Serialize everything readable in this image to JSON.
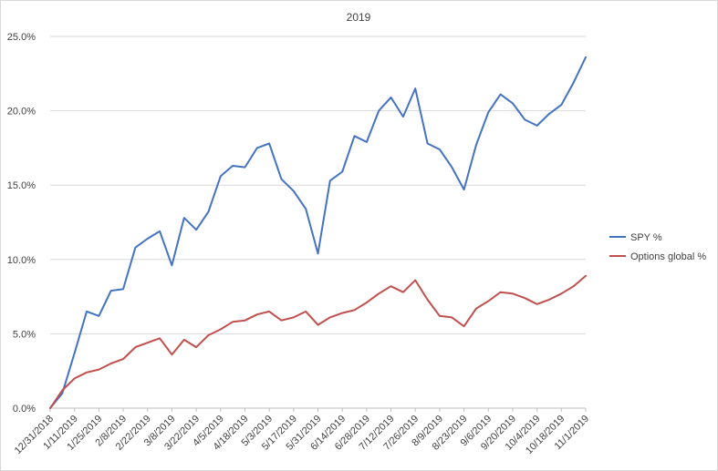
{
  "chart_data": {
    "type": "line",
    "title": "2019",
    "xlabel": "",
    "ylabel": "",
    "ylim": [
      0,
      0.25
    ],
    "y_ticks": [
      0,
      0.05,
      0.1,
      0.15,
      0.2,
      0.25
    ],
    "y_tick_labels": [
      "0.0%",
      "5.0%",
      "10.0%",
      "15.0%",
      "20.0%",
      "25.0%"
    ],
    "grid": "horizontal",
    "legend_position": "right",
    "x_tick_labels": [
      "12/31/2018",
      "1/11/2019",
      "1/25/2019",
      "2/8/2019",
      "2/22/2019",
      "3/8/2019",
      "3/22/2019",
      "4/5/2019",
      "4/18/2019",
      "5/3/2019",
      "5/17/2019",
      "5/31/2019",
      "6/14/2019",
      "6/28/2019",
      "7/12/2019",
      "7/26/2019",
      "8/9/2019",
      "8/23/2019",
      "9/6/2019",
      "9/20/2019",
      "10/4/2019",
      "10/18/2019",
      "11/1/2019"
    ],
    "series": [
      {
        "name": "SPY %",
        "color": "#4472C4",
        "values": [
          0.0,
          0.01,
          0.037,
          0.065,
          0.062,
          0.079,
          0.08,
          0.108,
          0.114,
          0.119,
          0.096,
          0.128,
          0.12,
          0.132,
          0.156,
          0.163,
          0.162,
          0.175,
          0.178,
          0.154,
          0.146,
          0.134,
          0.104,
          0.153,
          0.159,
          0.183,
          0.179,
          0.2,
          0.209,
          0.196,
          0.215,
          0.178,
          0.174,
          0.162,
          0.147,
          0.177,
          0.199,
          0.211,
          0.205,
          0.194,
          0.19,
          0.198,
          0.204,
          0.219,
          0.236
        ]
      },
      {
        "name": "Options global %",
        "color": "#C0504D",
        "values": [
          0.0,
          0.012,
          0.02,
          0.024,
          0.026,
          0.03,
          0.033,
          0.041,
          0.044,
          0.047,
          0.036,
          0.046,
          0.041,
          0.049,
          0.053,
          0.058,
          0.059,
          0.063,
          0.065,
          0.059,
          0.061,
          0.065,
          0.056,
          0.061,
          0.064,
          0.066,
          0.071,
          0.077,
          0.082,
          0.078,
          0.086,
          0.073,
          0.062,
          0.061,
          0.055,
          0.067,
          0.072,
          0.078,
          0.077,
          0.074,
          0.07,
          0.073,
          0.077,
          0.082,
          0.089
        ]
      }
    ]
  }
}
